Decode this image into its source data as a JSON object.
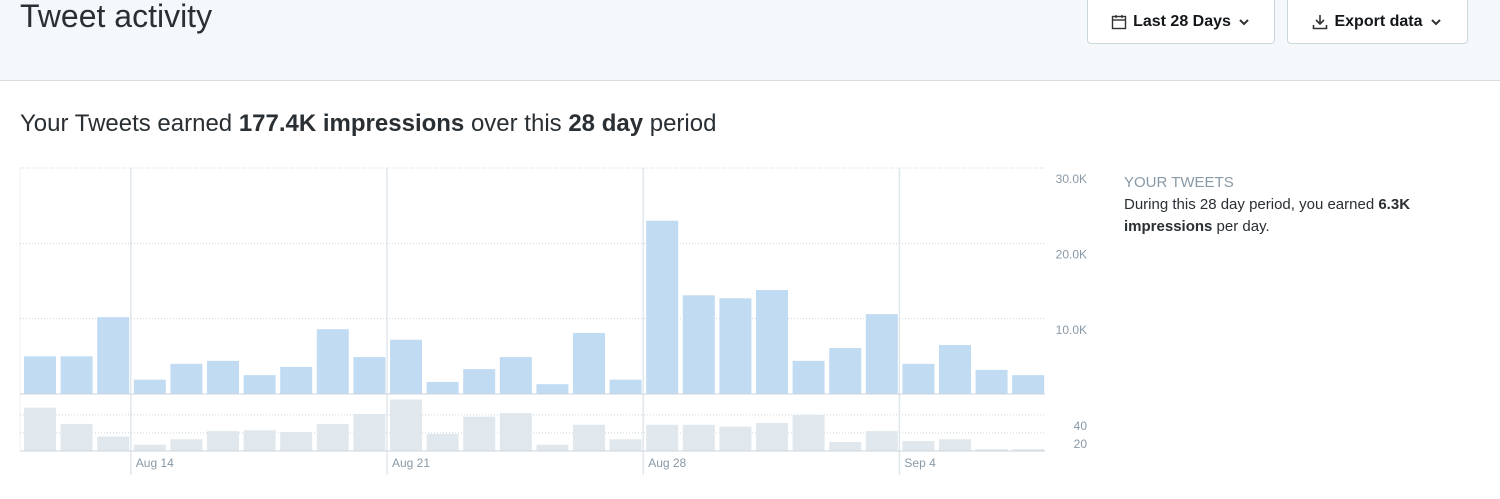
{
  "header": {
    "title": "Tweet activity",
    "date_range": "Last 28 Days",
    "export": "Export data"
  },
  "summary": [
    "Your Tweets earned",
    "177.4K impressions",
    "over this",
    "28 day",
    "period"
  ],
  "sidebar": {
    "heading": "YOUR TWEETS",
    "text": [
      "During this 28 day period, you earned",
      "6.3K impressions",
      "per day."
    ]
  },
  "chart_data": [
    {
      "type": "bar",
      "color": "#c0dbf2",
      "categories": [
        null,
        null,
        null,
        "Aug 14",
        null,
        null,
        null,
        null,
        null,
        null,
        "Aug 21",
        null,
        null,
        null,
        null,
        null,
        null,
        "Aug 28",
        null,
        null,
        null,
        null,
        null,
        null,
        "Sep 4",
        null,
        null,
        null
      ],
      "values": [
        5000,
        5000,
        10200,
        1900,
        4000,
        4400,
        2500,
        3600,
        8600,
        4900,
        7200,
        1600,
        3300,
        4900,
        1300,
        8100,
        1900,
        23000,
        13100,
        12700,
        13800,
        4400,
        6100,
        10600,
        4000,
        6500,
        3200,
        2500
      ],
      "ylim": [
        0,
        30000
      ],
      "yticks": [
        {
          "value": 10000,
          "label": "10.0K"
        },
        {
          "value": 20000,
          "label": "20.0K"
        },
        {
          "value": 30000,
          "label": "30.0K"
        }
      ],
      "grid": true
    },
    {
      "type": "bar",
      "color": "#e1e8ed",
      "values": [
        48,
        30,
        16,
        7,
        13,
        22,
        23,
        21,
        30,
        41,
        57,
        19,
        38,
        42,
        7,
        29,
        13,
        29,
        29,
        27,
        31,
        40,
        10,
        22,
        11,
        13,
        2,
        2
      ],
      "ylim": [
        0,
        62
      ],
      "yticks": [
        20,
        40
      ],
      "grid": true
    }
  ]
}
